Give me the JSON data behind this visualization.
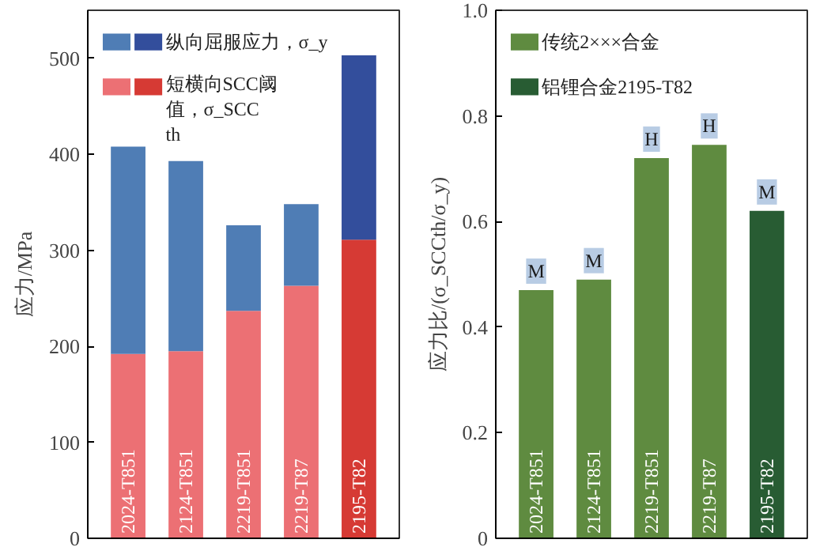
{
  "chart_data": [
    {
      "type": "bar",
      "stacked": true,
      "ylabel": "应力/MPa",
      "categories": [
        "2024-T851",
        "2124-T851",
        "2219-T851",
        "2219-T87",
        "2195-T82"
      ],
      "ylim": [
        0,
        550
      ],
      "yticks": [
        0,
        100,
        200,
        300,
        400,
        500
      ],
      "grid": false,
      "legend": "top left",
      "series": [
        {
          "name": "短横向SCC阈值，σ_SCCth",
          "colors": [
            "#ec7074",
            "#ec7074",
            "#ec7074",
            "#ec7074",
            "#d63a34"
          ],
          "values": [
            192,
            195,
            237,
            263,
            311
          ]
        },
        {
          "name": "纵向屈服应力，σ_y",
          "colors": [
            "#4f7db5",
            "#4f7db5",
            "#4f7db5",
            "#4f7db5",
            "#334e9c"
          ],
          "values": [
            216,
            198,
            89,
            85,
            192
          ]
        }
      ]
    },
    {
      "type": "bar",
      "ylabel": "应力比/(σ_SCCth/σ_y)",
      "categories": [
        "2024-T851",
        "2124-T851",
        "2219-T851",
        "2219-T87",
        "2195-T82"
      ],
      "ylim": [
        0,
        1.0
      ],
      "yticks": [
        0,
        {
          "value": 0.2,
          "label": "0.2"
        },
        {
          "value": 0.4,
          "label": "0.4"
        },
        {
          "value": 0.6,
          "label": "0.6"
        },
        {
          "value": 0.8,
          "label": "0.8"
        },
        {
          "value": 1.0,
          "label": "1.0"
        }
      ],
      "grid": false,
      "legend": "top left",
      "series": [
        {
          "name": "传统2×××合金",
          "color": "#5f8b40",
          "values": [
            0.47,
            0.49,
            0.72,
            0.745,
            null
          ],
          "value_labels": [
            "M",
            "M",
            "H",
            "H",
            null
          ]
        },
        {
          "name": "铝锂合金2195-T82",
          "color": "#285c33",
          "values": [
            null,
            null,
            null,
            null,
            0.62
          ],
          "value_labels": [
            null,
            null,
            null,
            null,
            "M"
          ]
        }
      ]
    }
  ]
}
